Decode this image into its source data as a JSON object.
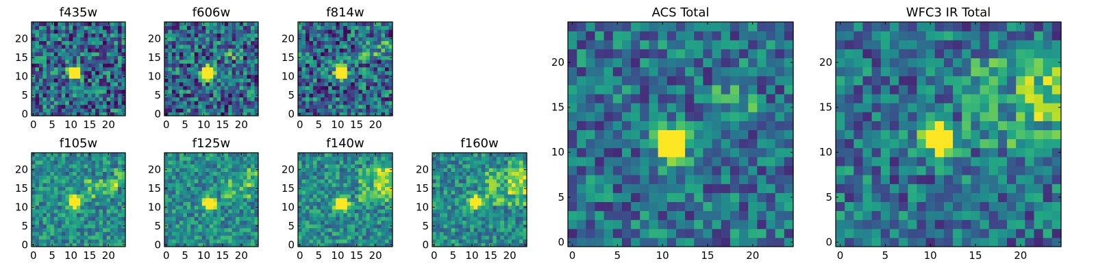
{
  "chart_data": [
    {
      "type": "heatmap",
      "title": "f435w",
      "xticks": [
        "0",
        "5",
        "10",
        "15",
        "20"
      ],
      "yticks": [
        "0",
        "5",
        "10",
        "15",
        "20"
      ],
      "xlim": [
        0,
        25
      ],
      "ylim": [
        0,
        25
      ],
      "peak": [
        11.5,
        11.5
      ],
      "bands": []
    },
    {
      "type": "heatmap",
      "title": "f606w",
      "xticks": [
        "0",
        "5",
        "10",
        "15",
        "20"
      ],
      "yticks": [
        "0",
        "5",
        "10",
        "15",
        "20"
      ],
      "xlim": [
        0,
        25
      ],
      "ylim": [
        0,
        25
      ],
      "peak": [
        11.5,
        11.5
      ],
      "bands": [
        [
          16,
          15,
          20,
          17
        ]
      ]
    },
    {
      "type": "heatmap",
      "title": "f814w",
      "xticks": [
        "0",
        "5",
        "10",
        "15",
        "20"
      ],
      "yticks": [
        "0",
        "5",
        "10",
        "15",
        "20"
      ],
      "xlim": [
        0,
        25
      ],
      "ylim": [
        0,
        25
      ],
      "peak": [
        11.5,
        11.5
      ],
      "bands": [
        [
          16,
          15,
          24,
          19
        ]
      ]
    },
    {
      "type": "heatmap",
      "title": "f105w",
      "xticks": [
        "0",
        "5",
        "10",
        "15",
        "20"
      ],
      "yticks": [
        "0",
        "5",
        "10",
        "15",
        "20"
      ],
      "xlim": [
        0,
        25
      ],
      "ylim": [
        0,
        25
      ],
      "peak": [
        11.5,
        12.0
      ],
      "bands": [
        [
          14,
          13,
          22,
          17
        ],
        [
          22,
          16,
          24,
          20
        ]
      ]
    },
    {
      "type": "heatmap",
      "title": "f125w",
      "xticks": [
        "0",
        "5",
        "10",
        "15",
        "20"
      ],
      "yticks": [
        "0",
        "5",
        "10",
        "15",
        "20"
      ],
      "xlim": [
        0,
        25
      ],
      "ylim": [
        0,
        25
      ],
      "peak": [
        12.0,
        11.5
      ],
      "bands": [
        [
          15,
          13,
          22,
          17
        ],
        [
          22,
          16,
          24,
          20
        ]
      ]
    },
    {
      "type": "heatmap",
      "title": "f140w",
      "xticks": [
        "0",
        "5",
        "10",
        "15",
        "20"
      ],
      "yticks": [
        "0",
        "5",
        "10",
        "15",
        "20"
      ],
      "xlim": [
        0,
        25
      ],
      "ylim": [
        0,
        25
      ],
      "peak": [
        11.5,
        11.5
      ],
      "bands": [
        [
          16,
          12,
          24,
          20
        ],
        [
          20,
          14,
          24,
          22
        ]
      ]
    },
    {
      "type": "heatmap",
      "title": "f160w",
      "xticks": [
        "0",
        "5",
        "10",
        "15",
        "20"
      ],
      "yticks": [
        "0",
        "5",
        "10",
        "15",
        "20"
      ],
      "xlim": [
        0,
        25
      ],
      "ylim": [
        0,
        25
      ],
      "peak": [
        11.5,
        12.0
      ],
      "bands": [
        [
          14,
          11,
          24,
          20
        ],
        [
          20,
          14,
          24,
          22
        ]
      ]
    },
    {
      "type": "heatmap",
      "title": "ACS Total",
      "xticks": [
        "0",
        "5",
        "10",
        "15",
        "20"
      ],
      "yticks": [
        "0",
        "5",
        "10",
        "15",
        "20"
      ],
      "xlim": [
        0,
        25
      ],
      "ylim": [
        0,
        25
      ],
      "peak": [
        11.5,
        11.5
      ],
      "bands": [
        [
          16,
          14,
          20,
          17
        ]
      ]
    },
    {
      "type": "heatmap",
      "title": "WFC3 IR Total",
      "xticks": [
        "0",
        "5",
        "10",
        "15",
        "20"
      ],
      "yticks": [
        "0",
        "5",
        "10",
        "15",
        "20"
      ],
      "xlim": [
        0,
        25
      ],
      "ylim": [
        0,
        25
      ],
      "peak": [
        11.5,
        12.0
      ],
      "bands": [
        [
          14,
          11,
          24,
          20
        ],
        [
          20,
          14,
          24,
          22
        ]
      ]
    }
  ]
}
